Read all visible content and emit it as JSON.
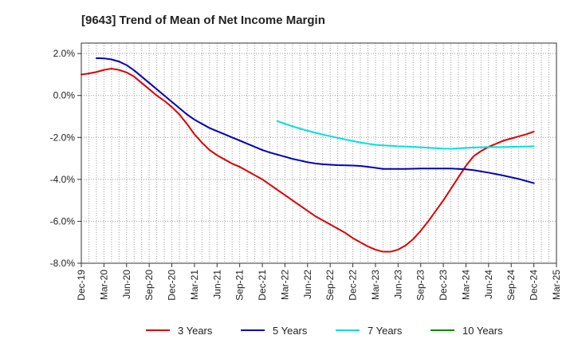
{
  "chart_data": {
    "type": "line",
    "title": "[9643]  Trend of Mean of Net Income Margin",
    "xlabel": "",
    "ylabel": "",
    "categories": [
      "Dec-19",
      "Mar-20",
      "Jun-20",
      "Sep-20",
      "Dec-20",
      "Mar-21",
      "Jun-21",
      "Sep-21",
      "Dec-21",
      "Mar-22",
      "Jun-22",
      "Sep-22",
      "Dec-22",
      "Mar-23",
      "Jun-23",
      "Sep-23",
      "Dec-23",
      "Mar-24",
      "Jun-24",
      "Sep-24",
      "Dec-24",
      "Mar-25"
    ],
    "y_ticks": [
      "2.0%",
      "0.0%",
      "-2.0%",
      "-4.0%",
      "-6.0%",
      "-8.0%"
    ],
    "ylim": [
      -8.0,
      2.5
    ],
    "grid": true,
    "legend_position": "bottom",
    "series": [
      {
        "name": "3 Years",
        "color": "#dd0000",
        "x": [
          "Dec-19",
          "Jan-20",
          "Feb-20",
          "Mar-20",
          "Apr-20",
          "May-20",
          "Jun-20",
          "Jul-20",
          "Aug-20",
          "Sep-20",
          "Oct-20",
          "Nov-20",
          "Dec-20",
          "Jan-21",
          "Feb-21",
          "Mar-21",
          "Apr-21",
          "May-21",
          "Jun-21",
          "Jul-21",
          "Aug-21",
          "Sep-21",
          "Oct-21",
          "Nov-21",
          "Dec-21",
          "Jan-22",
          "Feb-22",
          "Mar-22",
          "Apr-22",
          "May-22",
          "Jun-22",
          "Jul-22",
          "Aug-22",
          "Sep-22",
          "Oct-22",
          "Nov-22",
          "Dec-22",
          "Jan-23",
          "Feb-23",
          "Mar-23",
          "Apr-23",
          "May-23",
          "Jun-23",
          "Jul-23",
          "Aug-23",
          "Sep-23",
          "Oct-23",
          "Nov-23",
          "Dec-23",
          "Jan-24",
          "Feb-24",
          "Mar-24",
          "Apr-24",
          "May-24",
          "Jun-24",
          "Jul-24",
          "Aug-24",
          "Sep-24",
          "Oct-24",
          "Nov-24",
          "Dec-24"
        ],
        "values": [
          1.0,
          1.05,
          1.12,
          1.22,
          1.28,
          1.22,
          1.1,
          0.9,
          0.6,
          0.3,
          0.0,
          -0.25,
          -0.55,
          -0.9,
          -1.35,
          -1.85,
          -2.25,
          -2.6,
          -2.85,
          -3.05,
          -3.25,
          -3.4,
          -3.6,
          -3.8,
          -4.0,
          -4.25,
          -4.5,
          -4.75,
          -5.0,
          -5.25,
          -5.5,
          -5.75,
          -5.95,
          -6.15,
          -6.35,
          -6.55,
          -6.8,
          -7.0,
          -7.2,
          -7.35,
          -7.45,
          -7.45,
          -7.35,
          -7.15,
          -6.85,
          -6.45,
          -6.0,
          -5.5,
          -5.0,
          -4.45,
          -3.9,
          -3.35,
          -2.9,
          -2.65,
          -2.45,
          -2.3,
          -2.15,
          -2.05,
          -1.95,
          -1.85,
          -1.72
        ]
      },
      {
        "name": "5 Years",
        "color": "#0000bb",
        "x": [
          "Feb-20",
          "Mar-20",
          "Apr-20",
          "May-20",
          "Jun-20",
          "Jul-20",
          "Aug-20",
          "Sep-20",
          "Oct-20",
          "Nov-20",
          "Dec-20",
          "Jan-21",
          "Feb-21",
          "Mar-21",
          "Apr-21",
          "May-21",
          "Jun-21",
          "Jul-21",
          "Aug-21",
          "Sep-21",
          "Oct-21",
          "Nov-21",
          "Dec-21",
          "Jan-22",
          "Feb-22",
          "Mar-22",
          "Apr-22",
          "May-22",
          "Jun-22",
          "Jul-22",
          "Aug-22",
          "Sep-22",
          "Oct-22",
          "Nov-22",
          "Dec-22",
          "Jan-23",
          "Feb-23",
          "Mar-23",
          "Apr-23",
          "May-23",
          "Jun-23",
          "Jul-23",
          "Aug-23",
          "Sep-23",
          "Oct-23",
          "Nov-23",
          "Dec-23",
          "Jan-24",
          "Feb-24",
          "Mar-24",
          "Apr-24",
          "May-24",
          "Jun-24",
          "Jul-24",
          "Aug-24",
          "Sep-24",
          "Oct-24",
          "Nov-24",
          "Dec-24"
        ],
        "values": [
          1.78,
          1.77,
          1.72,
          1.62,
          1.45,
          1.2,
          0.9,
          0.6,
          0.3,
          0.0,
          -0.3,
          -0.6,
          -0.9,
          -1.15,
          -1.35,
          -1.55,
          -1.7,
          -1.85,
          -2.0,
          -2.15,
          -2.3,
          -2.45,
          -2.6,
          -2.72,
          -2.82,
          -2.92,
          -3.02,
          -3.1,
          -3.18,
          -3.24,
          -3.28,
          -3.3,
          -3.32,
          -3.33,
          -3.34,
          -3.36,
          -3.4,
          -3.45,
          -3.5,
          -3.5,
          -3.5,
          -3.5,
          -3.49,
          -3.48,
          -3.48,
          -3.48,
          -3.48,
          -3.48,
          -3.5,
          -3.52,
          -3.56,
          -3.62,
          -3.68,
          -3.75,
          -3.82,
          -3.9,
          -3.98,
          -4.08,
          -4.18
        ]
      },
      {
        "name": "7 Years",
        "color": "#00e0e0",
        "x": [
          "Feb-22",
          "Mar-22",
          "Apr-22",
          "May-22",
          "Jun-22",
          "Jul-22",
          "Aug-22",
          "Sep-22",
          "Oct-22",
          "Nov-22",
          "Dec-22",
          "Jan-23",
          "Feb-23",
          "Mar-23",
          "Apr-23",
          "May-23",
          "Jun-23",
          "Jul-23",
          "Aug-23",
          "Sep-23",
          "Oct-23",
          "Nov-23",
          "Dec-23",
          "Jan-24",
          "Feb-24",
          "Mar-24",
          "Apr-24",
          "May-24",
          "Jun-24",
          "Jul-24",
          "Aug-24",
          "Sep-24",
          "Oct-24",
          "Nov-24",
          "Dec-24"
        ],
        "values": [
          -1.22,
          -1.35,
          -1.47,
          -1.58,
          -1.68,
          -1.77,
          -1.86,
          -1.94,
          -2.02,
          -2.1,
          -2.17,
          -2.24,
          -2.3,
          -2.35,
          -2.38,
          -2.4,
          -2.42,
          -2.43,
          -2.45,
          -2.47,
          -2.49,
          -2.51,
          -2.53,
          -2.54,
          -2.52,
          -2.5,
          -2.48,
          -2.47,
          -2.46,
          -2.46,
          -2.46,
          -2.45,
          -2.44,
          -2.43,
          -2.42
        ]
      },
      {
        "name": "10 Years",
        "color": "#008800",
        "x": [],
        "values": []
      }
    ]
  }
}
